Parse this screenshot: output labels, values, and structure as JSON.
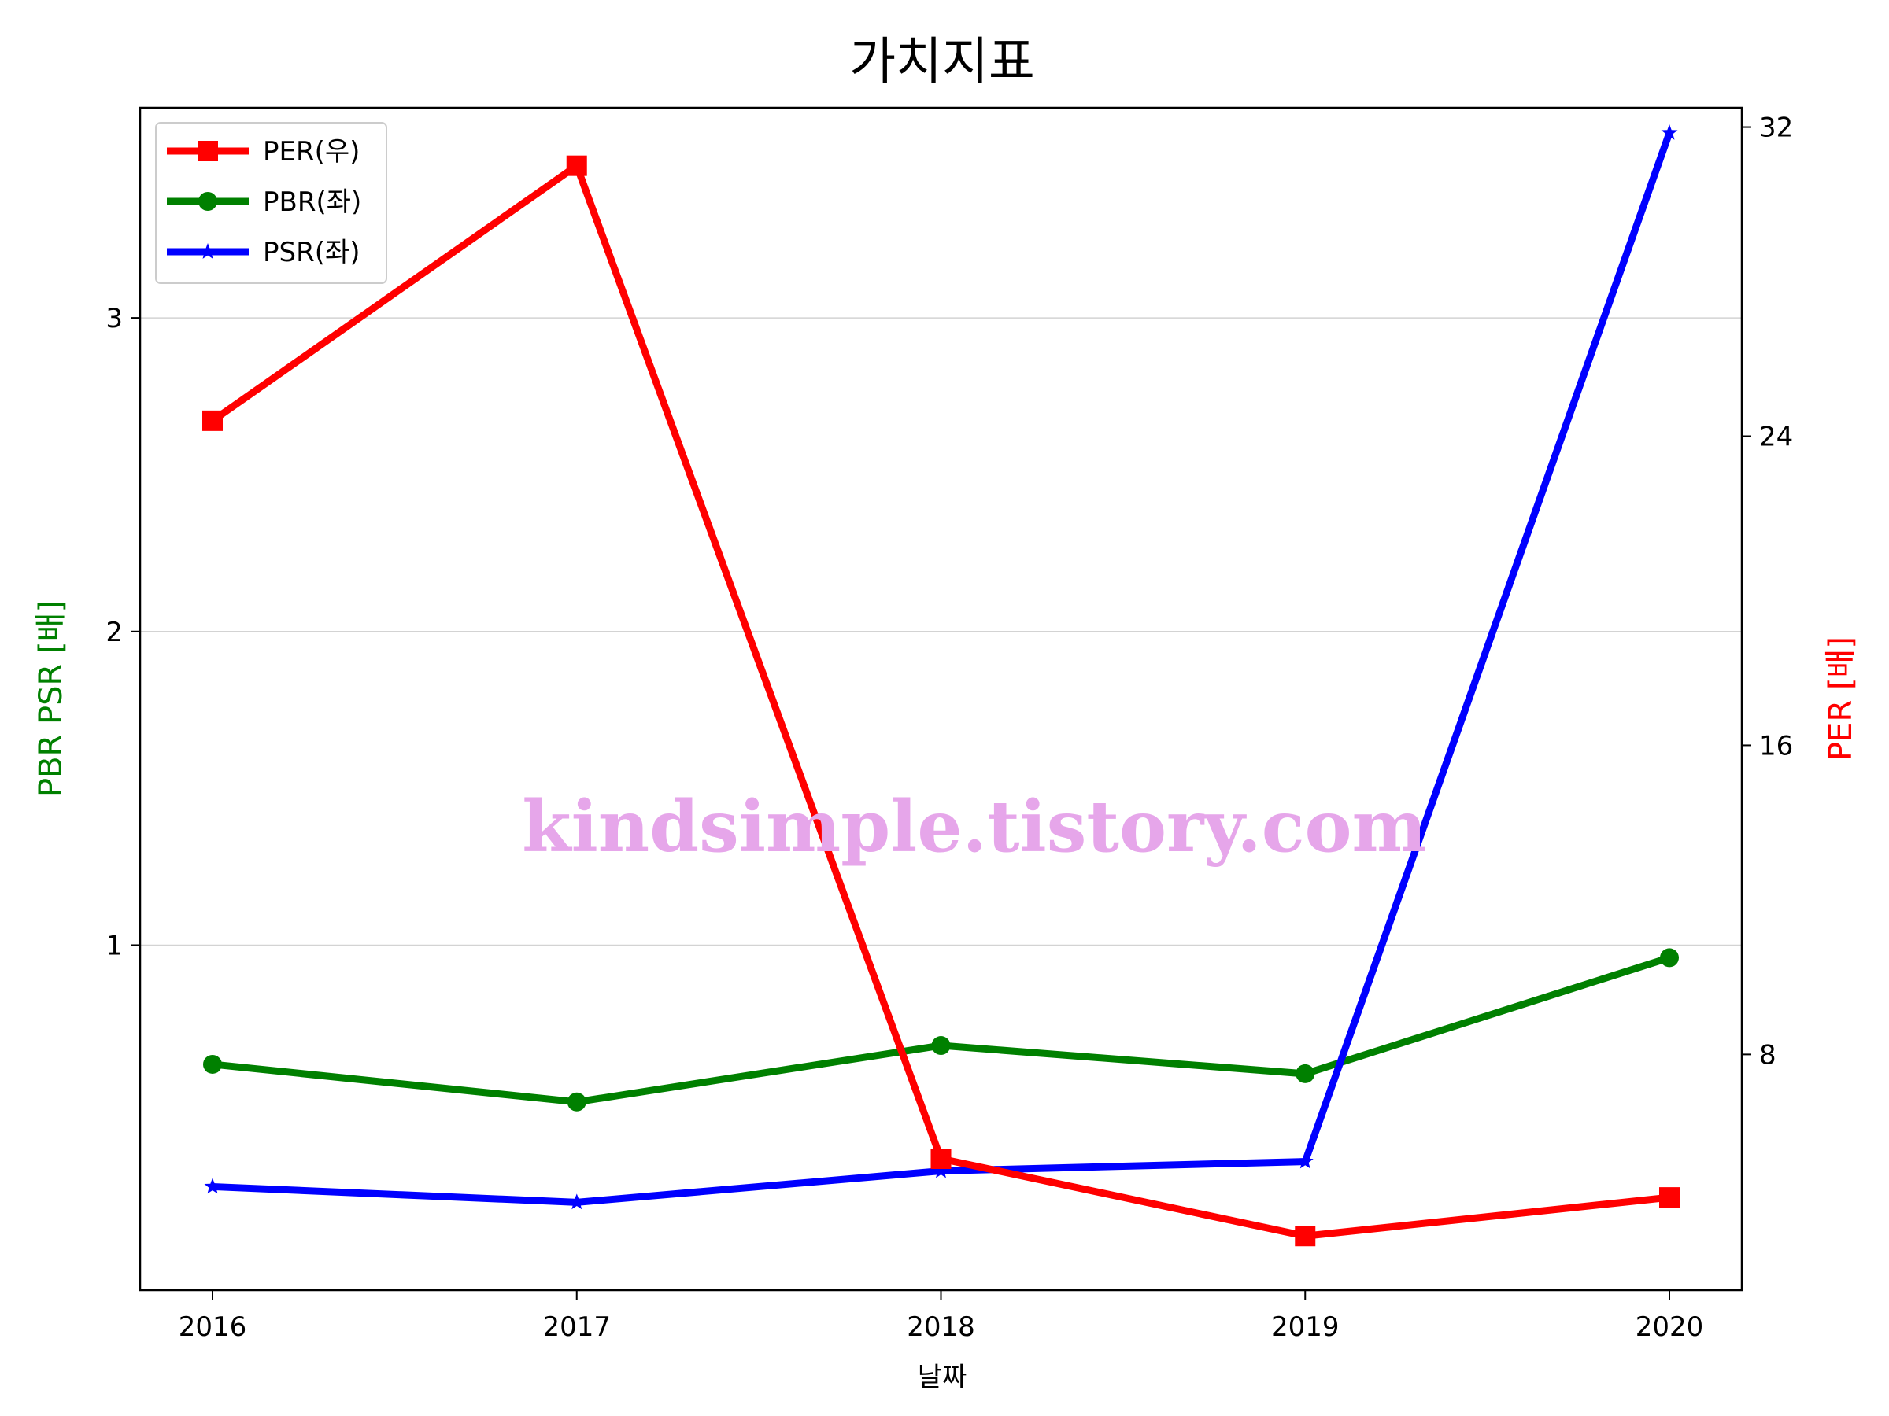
{
  "chart_data": {
    "type": "line",
    "title": "가치지표",
    "xlabel": "날짜",
    "ylabel_left": "PBR PSR [배]",
    "ylabel_right": "PER [배]",
    "categories": [
      "2016",
      "2017",
      "2018",
      "2019",
      "2020"
    ],
    "ylim_left": [
      -0.1,
      3.67
    ],
    "ylim_right": [
      1.9,
      32.5
    ],
    "yticks_left": [
      "1",
      "2",
      "3"
    ],
    "yticks_right": [
      "8",
      "16",
      "24",
      "32"
    ],
    "grid": "horizontal (left axis)",
    "legend_position": "top-left",
    "series": [
      {
        "name": "PER(우)",
        "axis": "right",
        "color": "#ff0000",
        "marker": "square",
        "values": [
          24.4,
          31.0,
          5.3,
          3.3,
          4.3
        ]
      },
      {
        "name": "PBR(좌)",
        "axis": "left",
        "color": "#008000",
        "marker": "circle",
        "values": [
          0.62,
          0.5,
          0.68,
          0.59,
          0.96
        ]
      },
      {
        "name": "PSR(좌)",
        "axis": "left",
        "color": "#0000ff",
        "marker": "star",
        "values": [
          0.23,
          0.18,
          0.28,
          0.31,
          3.59
        ]
      }
    ],
    "watermark": "kindsimple.tistory.com"
  }
}
